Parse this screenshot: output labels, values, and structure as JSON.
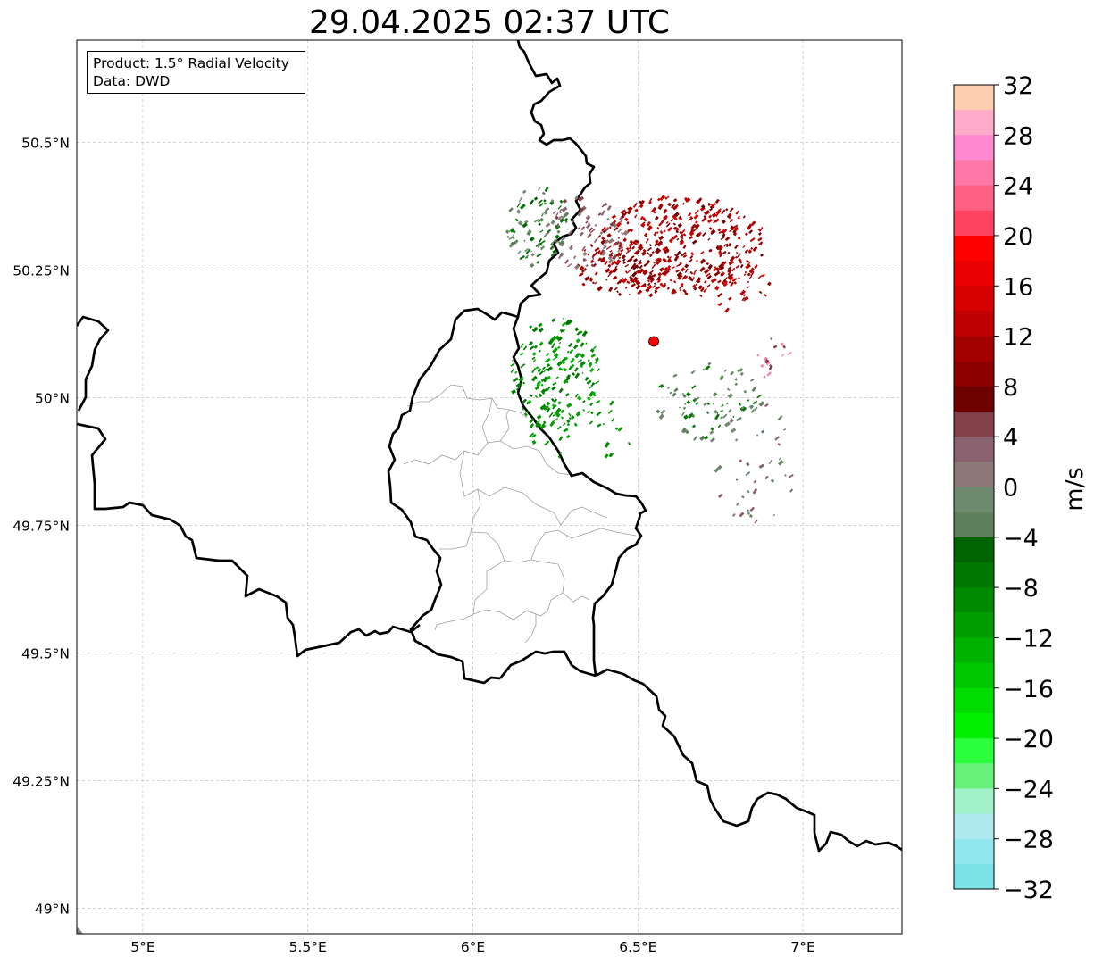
{
  "title": "29.04.2025 02:37 UTC",
  "info_box": {
    "product": "Product: 1.5° Radial Velocity",
    "data": "Data: DWD"
  },
  "map": {
    "lon_range": [
      4.8,
      7.3
    ],
    "lat_range": [
      48.95,
      50.7
    ],
    "x_ticks": [
      {
        "value": 5.0,
        "label": "5°E"
      },
      {
        "value": 5.5,
        "label": "5.5°E"
      },
      {
        "value": 6.0,
        "label": "6°E"
      },
      {
        "value": 6.5,
        "label": "6.5°E"
      },
      {
        "value": 7.0,
        "label": "7°E"
      }
    ],
    "y_ticks": [
      {
        "value": 49.0,
        "label": "49°N"
      },
      {
        "value": 49.25,
        "label": "49.25°N"
      },
      {
        "value": 49.5,
        "label": "49.5°N"
      },
      {
        "value": 49.75,
        "label": "49.75°N"
      },
      {
        "value": 50.0,
        "label": "50°N"
      },
      {
        "value": 50.25,
        "label": "50.25°N"
      },
      {
        "value": 50.5,
        "label": "50.5°N"
      }
    ],
    "grid": true,
    "radar_site": {
      "lon": 6.548,
      "lat": 50.11,
      "color": "#ff0000"
    },
    "border_color": "#000000",
    "admin_color": "#a0a0a0"
  },
  "colorbar": {
    "label": "m/s",
    "min": -32,
    "max": 32,
    "ticks": [
      {
        "value": 32,
        "label": "32"
      },
      {
        "value": 28,
        "label": "28"
      },
      {
        "value": 24,
        "label": "24"
      },
      {
        "value": 20,
        "label": "20"
      },
      {
        "value": 16,
        "label": "16"
      },
      {
        "value": 12,
        "label": "12"
      },
      {
        "value": 8,
        "label": "8"
      },
      {
        "value": 4,
        "label": "4"
      },
      {
        "value": 0,
        "label": "0"
      },
      {
        "value": -4,
        "label": "−4"
      },
      {
        "value": -8,
        "label": "−8"
      },
      {
        "value": -12,
        "label": "−12"
      },
      {
        "value": -16,
        "label": "−16"
      },
      {
        "value": -20,
        "label": "−20"
      },
      {
        "value": -24,
        "label": "−24"
      },
      {
        "value": -28,
        "label": "−28"
      },
      {
        "value": -32,
        "label": "−32"
      }
    ],
    "colors_top_to_bottom": [
      "#ffcdb0",
      "#ffaac8",
      "#ff88d0",
      "#ff78a8",
      "#ff6084",
      "#ff4462",
      "#ff0000",
      "#ea0000",
      "#d50000",
      "#bf0000",
      "#a50000",
      "#8c0000",
      "#6e0000",
      "#844048",
      "#8a6270",
      "#8e7878",
      "#6e8a6e",
      "#5e805a",
      "#006400",
      "#007800",
      "#008a00",
      "#009e00",
      "#00b200",
      "#00c800",
      "#00dc00",
      "#00f000",
      "#2cff3c",
      "#66f27a",
      "#a0f0c8",
      "#b0e8f0",
      "#90e8ee",
      "#7ae4e8"
    ]
  }
}
